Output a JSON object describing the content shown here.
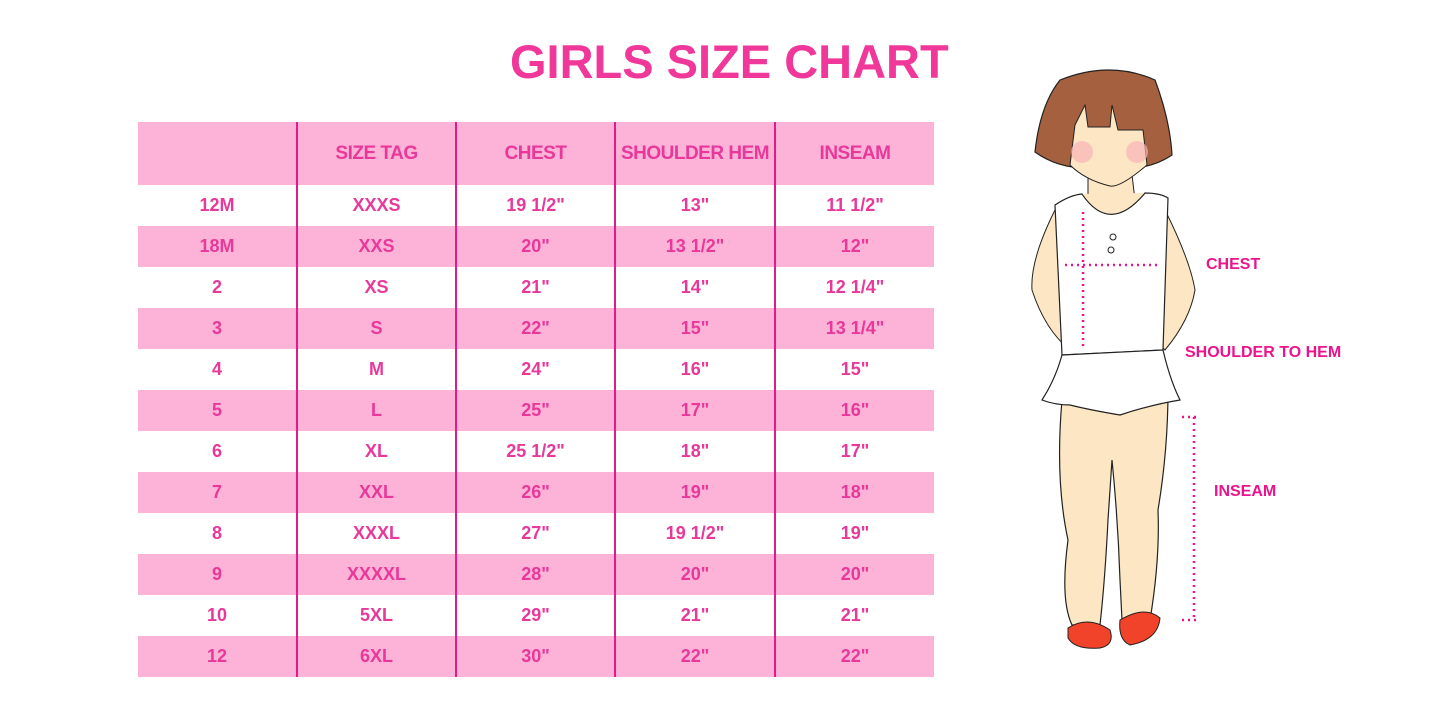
{
  "title": "GIRLS SIZE CHART",
  "table": {
    "headers": [
      "",
      "SIZE TAG",
      "CHEST",
      "SHOULDER HEM",
      "INSEAM"
    ],
    "rows": [
      [
        "12M",
        "XXXS",
        "19 1/2\"",
        "13\"",
        "11 1/2\""
      ],
      [
        "18M",
        "XXS",
        "20\"",
        "13 1/2\"",
        "12\""
      ],
      [
        "2",
        "XS",
        "21\"",
        "14\"",
        "12 1/4\""
      ],
      [
        "3",
        "S",
        "22\"",
        "15\"",
        "13 1/4\""
      ],
      [
        "4",
        "M",
        "24\"",
        "16\"",
        "15\""
      ],
      [
        "5",
        "L",
        "25\"",
        "17\"",
        "16\""
      ],
      [
        "6",
        "XL",
        "25 1/2\"",
        "18\"",
        "17\""
      ],
      [
        "7",
        "XXL",
        "26\"",
        "19\"",
        "18\""
      ],
      [
        "8",
        "XXXL",
        "27\"",
        "19 1/2\"",
        "19\""
      ],
      [
        "9",
        "XXXXL",
        "28\"",
        "20\"",
        "20\""
      ],
      [
        "10",
        "5XL",
        "29\"",
        "21\"",
        "21\""
      ],
      [
        "12",
        "6XL",
        "30\"",
        "22\"",
        "22\""
      ]
    ]
  },
  "figure": {
    "labels": {
      "chest": "CHEST",
      "shoulder_to_hem": "SHOULDER TO HEM",
      "inseam": "INSEAM"
    }
  },
  "colors": {
    "accent": "#f0389a",
    "row_pink": "#fdb2d8",
    "divider": "#e21a8a"
  }
}
